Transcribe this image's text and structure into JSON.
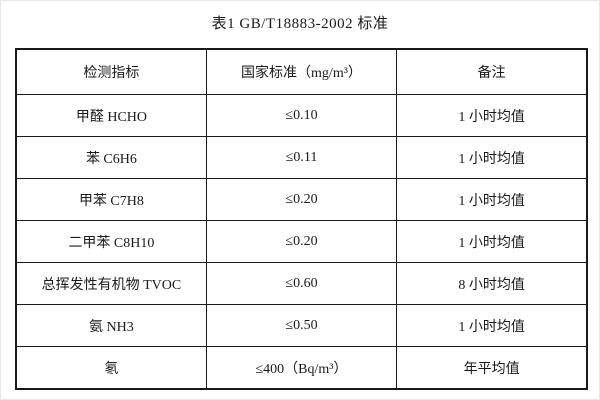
{
  "page": {
    "background": "#ffffff",
    "text_color": "#1a1a1a",
    "border_color": "#1a1a1a"
  },
  "title": "表1 GB/T18883-2002 标准",
  "table": {
    "headers": [
      "检测指标",
      "国家标准（mg/m³）",
      "备注"
    ],
    "rows": [
      [
        "甲醛 HCHO",
        "≤0.10",
        "1 小时均值"
      ],
      [
        "苯 C6H6",
        "≤0.11",
        "1 小时均值"
      ],
      [
        "甲苯 C7H8",
        "≤0.20",
        "1 小时均值"
      ],
      [
        "二甲苯 C8H10",
        "≤0.20",
        "1 小时均值"
      ],
      [
        "总挥发性有机物 TVOC",
        "≤0.60",
        "8 小时均值"
      ],
      [
        "氨 NH3",
        "≤0.50",
        "1 小时均值"
      ],
      [
        "氡",
        "≤400（Bq/m³）",
        "年平均值"
      ]
    ]
  }
}
